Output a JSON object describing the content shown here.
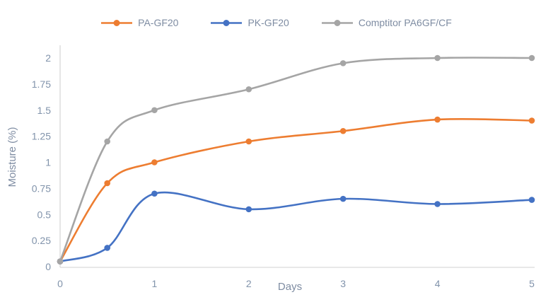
{
  "chart_data": {
    "type": "line",
    "xlabel": "Days",
    "ylabel": "Moisture (%)",
    "x": [
      0,
      0.5,
      1,
      2,
      3,
      4,
      5
    ],
    "x_ticks": [
      0,
      1,
      2,
      3,
      4,
      5
    ],
    "y_ticks": [
      0,
      0.25,
      0.5,
      0.75,
      1,
      1.25,
      1.5,
      1.75,
      2
    ],
    "xlim": [
      0,
      5
    ],
    "ylim": [
      0,
      2
    ],
    "grid": false,
    "smooth": true,
    "marker": "circle",
    "legend_position": "top-center",
    "series": [
      {
        "name": "PA-GF20",
        "color": "#ED7D31",
        "values": [
          0.05,
          0.8,
          1.0,
          1.2,
          1.3,
          1.41,
          1.4
        ]
      },
      {
        "name": "PK-GF20",
        "color": "#4472C4",
        "values": [
          0.05,
          0.18,
          0.7,
          0.55,
          0.65,
          0.6,
          0.64
        ]
      },
      {
        "name": "Comptitor PA6GF/CF",
        "color": "#A5A5A5",
        "values": [
          0.05,
          1.2,
          1.5,
          1.7,
          1.95,
          2.0,
          2.0
        ]
      }
    ]
  },
  "colors": {
    "background": "#FFFFFF",
    "axis_line": "#D9D9D9",
    "tick_text": "#8193AB",
    "label_text": "#7E8CA2"
  }
}
